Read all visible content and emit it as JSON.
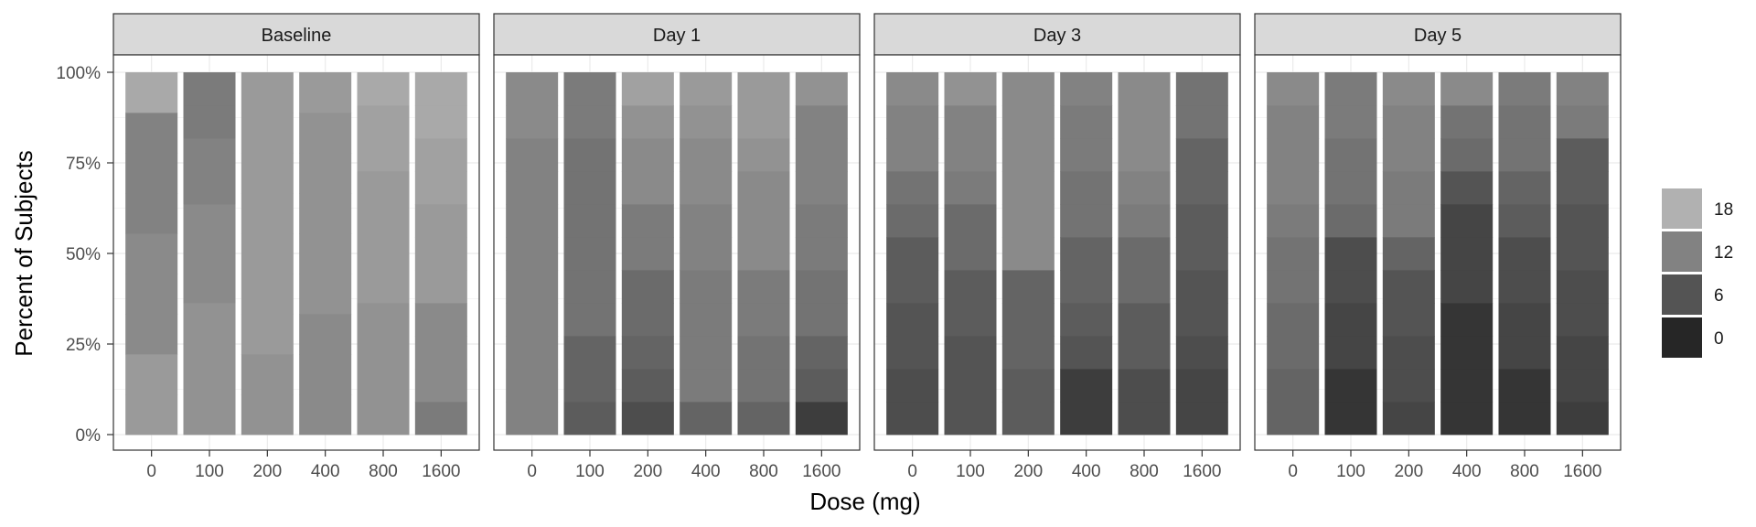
{
  "chart_data": {
    "type": "bar",
    "stacked": true,
    "percent_scale": true,
    "xlabel": "Dose (mg)",
    "ylabel": "Percent of Subjects",
    "y_ticks": [
      "0%",
      "25%",
      "50%",
      "75%",
      "100%"
    ],
    "ylim": [
      0,
      1
    ],
    "categories": [
      "0",
      "100",
      "200",
      "400",
      "800",
      "1600"
    ],
    "grid": "on",
    "legend": {
      "title": "",
      "position": "right",
      "entries": [
        {
          "label": "18",
          "value": 18
        },
        {
          "label": "12",
          "value": 12
        },
        {
          "label": "6",
          "value": 6
        },
        {
          "label": "0",
          "value": 0
        }
      ]
    },
    "score_range": [
      0,
      20
    ],
    "panels": [
      {
        "title": "Baseline",
        "bars": [
          [
            15,
            15,
            13,
            13,
            13,
            12,
            12,
            12,
            17
          ],
          [
            14,
            14,
            14,
            14,
            13,
            13,
            13,
            12,
            12,
            11,
            11
          ],
          [
            14,
            14,
            15,
            15,
            15,
            15,
            15,
            15,
            15
          ],
          [
            13,
            13,
            13,
            14,
            14,
            14,
            14,
            14,
            15
          ],
          [
            14,
            14,
            14,
            14,
            15,
            15,
            15,
            15,
            16,
            16,
            17
          ],
          [
            11,
            13,
            13,
            13,
            15,
            15,
            15,
            16,
            16,
            17,
            17
          ]
        ]
      },
      {
        "title": "Day 1",
        "bars": [
          [
            12,
            12,
            12,
            12,
            12,
            12,
            12,
            12,
            12,
            13,
            13
          ],
          [
            7,
            8,
            8,
            10,
            10,
            10,
            10,
            10,
            10,
            11,
            11
          ],
          [
            5,
            7,
            8,
            9,
            9,
            11,
            11,
            13,
            13,
            14,
            16
          ],
          [
            8,
            11,
            11,
            11,
            11,
            12,
            12,
            13,
            13,
            14,
            15
          ],
          [
            8,
            10,
            10,
            11,
            11,
            13,
            13,
            13,
            14,
            15,
            15
          ],
          [
            3,
            7,
            8,
            10,
            10,
            11,
            11,
            12,
            12,
            12,
            14
          ]
        ]
      },
      {
        "title": "Day 3",
        "bars": [
          [
            5,
            5,
            6,
            6,
            7,
            7,
            9,
            10,
            12,
            12,
            13
          ],
          [
            6,
            6,
            6,
            7,
            7,
            9,
            9,
            11,
            12,
            12,
            14
          ],
          [
            7,
            7,
            8,
            8,
            8,
            13,
            13,
            13,
            13,
            13,
            13
          ],
          [
            3,
            3,
            6,
            7,
            8,
            8,
            10,
            10,
            11,
            11,
            12
          ],
          [
            5,
            5,
            7,
            7,
            9,
            9,
            11,
            12,
            13,
            13,
            13
          ],
          [
            4,
            4,
            5,
            6,
            6,
            7,
            7,
            8,
            8,
            10,
            10
          ]
        ]
      },
      {
        "title": "Day 5",
        "bars": [
          [
            8,
            8,
            9,
            9,
            10,
            10,
            11,
            12,
            12,
            12,
            13
          ],
          [
            2,
            2,
            4,
            4,
            5,
            5,
            9,
            10,
            10,
            11,
            11
          ],
          [
            4,
            5,
            5,
            6,
            6,
            8,
            11,
            11,
            12,
            12,
            13
          ],
          [
            2,
            2,
            2,
            2,
            4,
            4,
            4,
            6,
            9,
            10,
            13
          ],
          [
            2,
            2,
            4,
            4,
            5,
            5,
            7,
            8,
            10,
            10,
            11
          ],
          [
            3,
            4,
            4,
            5,
            5,
            6,
            6,
            7,
            7,
            11,
            12
          ]
        ]
      }
    ]
  }
}
